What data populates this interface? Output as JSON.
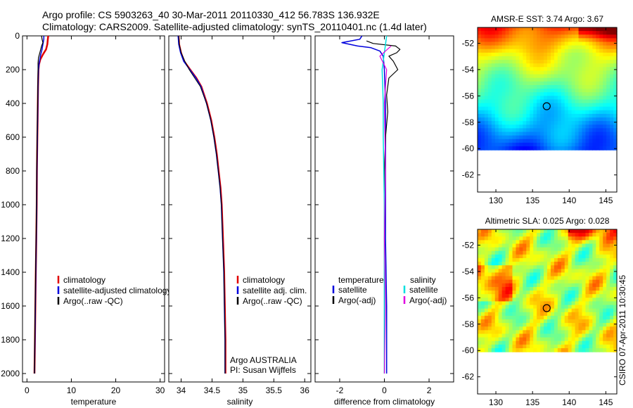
{
  "title_line1": "Argo profile: CS 5903263_40 30-Mar-2011 20110330_412 56.783S 136.932E",
  "title_line2": "Climatology: CARS2009. Satellite-adjusted climatology: synTS_20110401.nc (1.4d later)",
  "credit": "CSIRO 07-Apr-2011 10:30:45",
  "argo_note": [
    "Argo AUSTRALIA",
    "PI: Susan Wijffels"
  ],
  "colors": {
    "climatology": "#e00000",
    "satellite": "#0000dd",
    "argo": "#000000",
    "sat_salinity": "#00e0e0",
    "argo_salinity": "#e000e0"
  },
  "chart_data": [
    {
      "id": "temperature",
      "type": "line",
      "xlabel": "temperature",
      "ylabel": "",
      "xlim": [
        -1,
        31
      ],
      "ylim": [
        2050,
        0
      ],
      "xticks": [
        0,
        10,
        20,
        30
      ],
      "yticks": [
        0,
        200,
        400,
        600,
        800,
        1000,
        1200,
        1400,
        1600,
        1800,
        2000
      ],
      "legend": [
        "climatology",
        "satellite-adjusted climatology",
        "Argo(..raw -QC)"
      ],
      "series": [
        {
          "name": "climatology",
          "color": "#e00000",
          "width": 2.5,
          "points": [
            [
              4.8,
              0
            ],
            [
              4.7,
              20
            ],
            [
              4.6,
              50
            ],
            [
              4.3,
              80
            ],
            [
              3.6,
              110
            ],
            [
              3.0,
              140
            ],
            [
              2.7,
              170
            ],
            [
              2.6,
              200
            ],
            [
              2.5,
              300
            ],
            [
              2.45,
              400
            ],
            [
              2.4,
              500
            ],
            [
              2.35,
              600
            ],
            [
              2.3,
              700
            ],
            [
              2.25,
              800
            ],
            [
              2.2,
              1000
            ],
            [
              2.1,
              1200
            ],
            [
              2.0,
              1400
            ],
            [
              1.9,
              1600
            ],
            [
              1.8,
              1800
            ],
            [
              1.7,
              2000
            ]
          ]
        },
        {
          "name": "satellite-adjusted climatology",
          "color": "#0000dd",
          "width": 1.5,
          "points": [
            [
              3.8,
              0
            ],
            [
              3.8,
              20
            ],
            [
              3.6,
              50
            ],
            [
              3.4,
              80
            ],
            [
              3.1,
              110
            ],
            [
              2.9,
              140
            ],
            [
              2.7,
              170
            ],
            [
              2.6,
              200
            ],
            [
              2.5,
              300
            ],
            [
              2.45,
              400
            ],
            [
              2.4,
              500
            ],
            [
              2.35,
              600
            ],
            [
              2.3,
              700
            ],
            [
              2.25,
              800
            ],
            [
              2.2,
              1000
            ],
            [
              2.1,
              1200
            ],
            [
              2.0,
              1400
            ],
            [
              1.9,
              1600
            ],
            [
              1.8,
              1800
            ],
            [
              1.7,
              2000
            ]
          ]
        },
        {
          "name": "Argo(..raw -QC)",
          "color": "#000000",
          "width": 1.2,
          "points": [
            [
              3.3,
              0
            ],
            [
              3.4,
              20
            ],
            [
              3.6,
              40
            ],
            [
              3.3,
              60
            ],
            [
              3.1,
              80
            ],
            [
              2.9,
              100
            ],
            [
              2.6,
              130
            ],
            [
              2.5,
              160
            ],
            [
              2.5,
              200
            ],
            [
              2.45,
              300
            ],
            [
              2.4,
              400
            ],
            [
              2.35,
              500
            ],
            [
              2.3,
              600
            ],
            [
              2.25,
              700
            ],
            [
              2.2,
              800
            ],
            [
              2.15,
              1000
            ],
            [
              2.05,
              1200
            ],
            [
              1.95,
              1400
            ],
            [
              1.85,
              1600
            ],
            [
              1.75,
              1800
            ],
            [
              1.7,
              2000
            ]
          ]
        }
      ]
    },
    {
      "id": "salinity",
      "type": "line",
      "xlabel": "salinity",
      "ylabel": "",
      "xlim": [
        33.8,
        36.1
      ],
      "ylim": [
        2050,
        0
      ],
      "xticks": [
        34,
        34.5,
        35,
        35.5,
        36
      ],
      "xtick_labels": [
        "34",
        "34.5",
        "35",
        "35.5",
        "36"
      ],
      "yticks": [
        0,
        200,
        400,
        600,
        800,
        1000,
        1200,
        1400,
        1600,
        1800,
        2000
      ],
      "legend": [
        "climatology",
        "satellite adj. clim.",
        "Argo(..raw -QC)"
      ],
      "series": [
        {
          "name": "climatology",
          "color": "#e00000",
          "width": 2.0,
          "points": [
            [
              33.96,
              0
            ],
            [
              33.97,
              50
            ],
            [
              34.0,
              100
            ],
            [
              34.05,
              150
            ],
            [
              34.15,
              200
            ],
            [
              34.25,
              250
            ],
            [
              34.33,
              300
            ],
            [
              34.42,
              400
            ],
            [
              34.49,
              500
            ],
            [
              34.54,
              600
            ],
            [
              34.58,
              700
            ],
            [
              34.61,
              800
            ],
            [
              34.64,
              900
            ],
            [
              34.66,
              1000
            ],
            [
              34.68,
              1200
            ],
            [
              34.7,
              1400
            ],
            [
              34.71,
              1600
            ],
            [
              34.72,
              1800
            ],
            [
              34.72,
              2000
            ]
          ]
        },
        {
          "name": "satellite adj. clim.",
          "color": "#0000dd",
          "width": 1.5,
          "points": [
            [
              33.95,
              0
            ],
            [
              33.96,
              50
            ],
            [
              33.99,
              100
            ],
            [
              34.04,
              150
            ],
            [
              34.14,
              200
            ],
            [
              34.24,
              250
            ],
            [
              34.32,
              300
            ],
            [
              34.41,
              400
            ],
            [
              34.48,
              500
            ],
            [
              34.53,
              600
            ],
            [
              34.57,
              700
            ],
            [
              34.6,
              800
            ],
            [
              34.63,
              900
            ],
            [
              34.65,
              1000
            ],
            [
              34.67,
              1200
            ],
            [
              34.69,
              1400
            ],
            [
              34.7,
              1600
            ],
            [
              34.71,
              1800
            ],
            [
              34.71,
              2000
            ]
          ]
        },
        {
          "name": "Argo(..raw -QC)",
          "color": "#000000",
          "width": 1.0,
          "points": [
            [
              33.96,
              0
            ],
            [
              33.97,
              50
            ],
            [
              34.0,
              100
            ],
            [
              34.06,
              150
            ],
            [
              34.13,
              200
            ],
            [
              34.22,
              250
            ],
            [
              34.31,
              300
            ],
            [
              34.41,
              400
            ],
            [
              34.48,
              500
            ],
            [
              34.53,
              600
            ],
            [
              34.57,
              700
            ],
            [
              34.6,
              800
            ],
            [
              34.63,
              900
            ],
            [
              34.65,
              1000
            ],
            [
              34.67,
              1200
            ],
            [
              34.69,
              1400
            ],
            [
              34.7,
              1600
            ],
            [
              34.71,
              1800
            ],
            [
              34.71,
              2000
            ]
          ]
        }
      ]
    },
    {
      "id": "difference",
      "type": "line",
      "xlabel": "difference from climatology",
      "ylabel": "",
      "xlim": [
        -3.1,
        3.1
      ],
      "ylim": [
        2050,
        0
      ],
      "xticks": [
        -2,
        0,
        2
      ],
      "yticks": [
        0,
        200,
        400,
        600,
        800,
        1000,
        1200,
        1400,
        1600,
        1800,
        2000
      ],
      "legend_header": [
        "temperature",
        "salinity"
      ],
      "legend": [
        "satellite",
        "Argo(-adj)",
        "satellite",
        "Argo(-adj)"
      ],
      "series": [
        {
          "name": "temperature satellite",
          "color": "#0000dd",
          "width": 1.5,
          "points": [
            [
              -1.0,
              0
            ],
            [
              -1.1,
              20
            ],
            [
              -1.9,
              40
            ],
            [
              -1.2,
              60
            ],
            [
              -0.6,
              70
            ],
            [
              -0.2,
              90
            ],
            [
              -0.05,
              120
            ],
            [
              0.0,
              200
            ],
            [
              0.05,
              400
            ],
            [
              0.05,
              800
            ],
            [
              0.05,
              1200
            ],
            [
              0.1,
              1600
            ],
            [
              0.1,
              2000
            ]
          ]
        },
        {
          "name": "temperature Argo(-adj)",
          "color": "#000000",
          "width": 1.2,
          "points": [
            [
              -0.8,
              30
            ],
            [
              -0.5,
              45
            ],
            [
              0.5,
              60
            ],
            [
              0.7,
              80
            ],
            [
              0.55,
              100
            ],
            [
              0.2,
              120
            ],
            [
              0.4,
              150
            ],
            [
              0.6,
              200
            ],
            [
              0.2,
              250
            ],
            [
              0.1,
              350
            ],
            [
              0.15,
              450
            ],
            [
              0.05,
              600
            ],
            [
              0.0,
              800
            ],
            [
              0.0,
              1200
            ],
            [
              0.0,
              1600
            ],
            [
              0.0,
              2000
            ]
          ]
        },
        {
          "name": "salinity satellite",
          "color": "#00e0e0",
          "width": 1.5,
          "points": [
            [
              0.1,
              0
            ],
            [
              0.0,
              100
            ],
            [
              -0.1,
              200
            ],
            [
              -0.05,
              400
            ],
            [
              -0.05,
              600
            ],
            [
              0.0,
              1000
            ],
            [
              0.0,
              1500
            ],
            [
              0.0,
              2000
            ]
          ]
        },
        {
          "name": "salinity Argo(-adj)",
          "color": "#e000e0",
          "width": 1.2,
          "points": [
            [
              0.3,
              60
            ],
            [
              -0.2,
              120
            ],
            [
              0.1,
              200
            ],
            [
              0.0,
              400
            ],
            [
              0.05,
              800
            ],
            [
              0.0,
              1200
            ],
            [
              0.05,
              1600
            ],
            [
              0.0,
              2000
            ]
          ]
        }
      ]
    },
    {
      "id": "sst_map",
      "type": "heatmap",
      "title": "AMSR-E SST: 3.74 Argo: 3.67",
      "xlim": [
        127.5,
        146.5
      ],
      "ylim": [
        -63.3,
        -50.8
      ],
      "xticks": [
        130,
        135,
        140,
        145
      ],
      "yticks": [
        -52,
        -54,
        -56,
        -58,
        -60,
        -62
      ],
      "data_lat_range": [
        -60.1,
        -50.8
      ],
      "argo_position": {
        "lon": 136.932,
        "lat": -56.783
      },
      "colormap": "jet"
    },
    {
      "id": "sla_map",
      "type": "heatmap",
      "title": "Altimetric SLA: 0.025 Argo: 0.028",
      "xlim": [
        127.5,
        146.5
      ],
      "ylim": [
        -63.3,
        -50.8
      ],
      "xticks": [
        130,
        135,
        140,
        145
      ],
      "yticks": [
        -52,
        -54,
        -56,
        -58,
        -60,
        -62
      ],
      "data_lat_range": [
        -60.1,
        -50.8
      ],
      "argo_position": {
        "lon": 136.932,
        "lat": -56.783
      },
      "colormap": "jet"
    }
  ]
}
